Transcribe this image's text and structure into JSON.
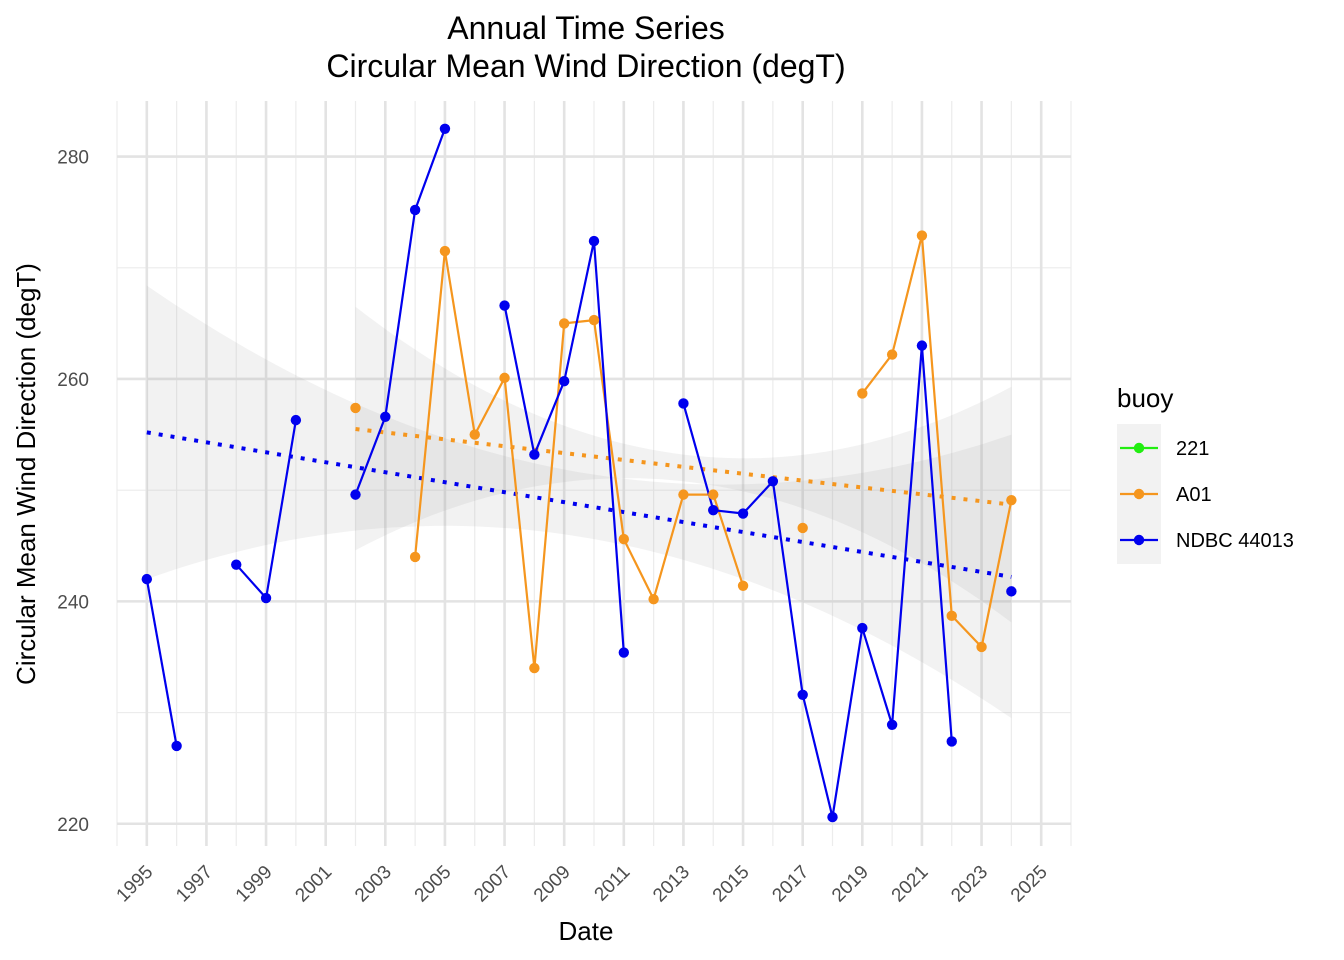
{
  "chart_data": {
    "type": "line",
    "title_line1": "Annual Time Series",
    "title_line2": "Circular Mean Wind Direction (degT)",
    "xlabel": "Date",
    "ylabel": "Circular Mean Wind Direction (degT)",
    "xlim": [
      1994,
      2026
    ],
    "ylim": [
      218,
      285
    ],
    "x_ticks": [
      1995,
      1997,
      1999,
      2001,
      2003,
      2005,
      2007,
      2009,
      2011,
      2013,
      2015,
      2017,
      2019,
      2021,
      2023,
      2025
    ],
    "y_ticks": [
      220,
      240,
      260,
      280
    ],
    "grid": true,
    "legend": {
      "title": "buoy",
      "position": "right"
    },
    "series": [
      {
        "name": "221",
        "color": "#22ee11",
        "points": []
      },
      {
        "name": "A01",
        "color": "#f5961e",
        "trend": {
          "x": [
            2002,
            2024
          ],
          "y": [
            255.5,
            248.7
          ]
        },
        "band": {
          "x": [
            2002,
            2013,
            2024
          ],
          "upper": [
            266.5,
            253.2,
            259.3
          ],
          "lower": [
            244.6,
            250.8,
            238.1
          ]
        },
        "points": [
          [
            2002,
            257.4
          ],
          [
            2003,
            null
          ],
          [
            2004,
            244.0
          ],
          [
            2005,
            271.5
          ],
          [
            2006,
            255.0
          ],
          [
            2007,
            260.1
          ],
          [
            2008,
            234.0
          ],
          [
            2009,
            265.0
          ],
          [
            2010,
            265.3
          ],
          [
            2011,
            245.6
          ],
          [
            2012,
            240.2
          ],
          [
            2013,
            249.6
          ],
          [
            2014,
            249.6
          ],
          [
            2015,
            241.4
          ],
          [
            2016,
            null
          ],
          [
            2017,
            246.6
          ],
          [
            2018,
            null
          ],
          [
            2019,
            258.7
          ],
          [
            2020,
            262.2
          ],
          [
            2021,
            272.9
          ],
          [
            2022,
            238.7
          ],
          [
            2023,
            235.9
          ],
          [
            2024,
            249.1
          ]
        ]
      },
      {
        "name": "NDBC 44013",
        "color": "#0000ee",
        "trend": {
          "x": [
            1995,
            2024
          ],
          "y": [
            255.2,
            242.2
          ]
        },
        "band": {
          "x": [
            1995,
            2010,
            2024
          ],
          "upper": [
            268.4,
            251.4,
            255.0
          ],
          "lower": [
            242.0,
            245.6,
            229.5
          ]
        },
        "points": [
          [
            1995,
            242.0
          ],
          [
            1996,
            227.0
          ],
          [
            1997,
            null
          ],
          [
            1998,
            243.3
          ],
          [
            1999,
            240.3
          ],
          [
            2000,
            256.3
          ],
          [
            2001,
            null
          ],
          [
            2002,
            249.6
          ],
          [
            2003,
            256.6
          ],
          [
            2004,
            275.2
          ],
          [
            2005,
            282.5
          ],
          [
            2006,
            null
          ],
          [
            2007,
            266.6
          ],
          [
            2008,
            253.2
          ],
          [
            2009,
            259.8
          ],
          [
            2010,
            272.4
          ],
          [
            2011,
            235.4
          ],
          [
            2012,
            null
          ],
          [
            2013,
            257.8
          ],
          [
            2014,
            248.2
          ],
          [
            2015,
            247.9
          ],
          [
            2016,
            250.8
          ],
          [
            2017,
            231.6
          ],
          [
            2018,
            220.6
          ],
          [
            2019,
            237.6
          ],
          [
            2020,
            228.9
          ],
          [
            2021,
            263.0
          ],
          [
            2022,
            227.4
          ],
          [
            2023,
            null
          ],
          [
            2024,
            240.9
          ]
        ]
      }
    ]
  }
}
